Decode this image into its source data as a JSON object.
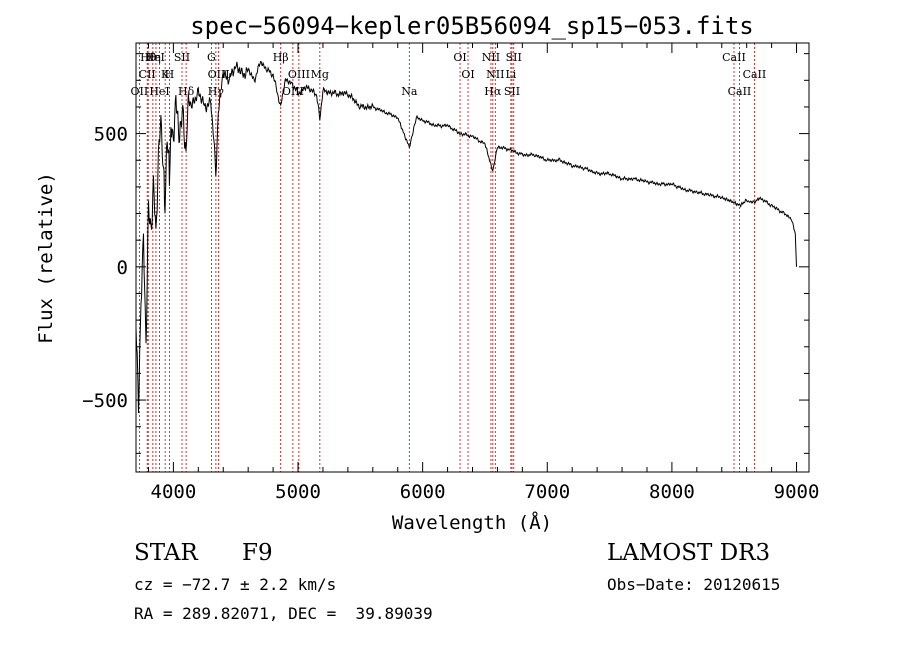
{
  "chart_data": {
    "type": "line",
    "title": "spec−56094−kepler05B56094_sp15−053.fits",
    "xlabel": "Wavelength (Å)",
    "ylabel": "Flux (relative)",
    "xlim": [
      3700,
      9100
    ],
    "ylim": [
      -770,
      840
    ],
    "xticks": [
      4000,
      5000,
      6000,
      7000,
      8000,
      9000
    ],
    "xtick_labels": [
      "4000",
      "5000",
      "6000",
      "7000",
      "8000",
      "9000"
    ],
    "yticks": [
      -500,
      0,
      500
    ],
    "ytick_labels": [
      "−500",
      "0",
      "500"
    ],
    "series": [
      {
        "name": "flux",
        "x": [
          3700,
          3720,
          3740,
          3760,
          3780,
          3800,
          3820,
          3840,
          3860,
          3880,
          3900,
          3920,
          3933,
          3945,
          3960,
          3968,
          3980,
          4000,
          4020,
          4050,
          4080,
          4101,
          4120,
          4150,
          4200,
          4250,
          4300,
          4330,
          4340,
          4360,
          4400,
          4450,
          4500,
          4550,
          4600,
          4650,
          4700,
          4750,
          4800,
          4861,
          4900,
          4950,
          5000,
          5050,
          5100,
          5150,
          5175,
          5200,
          5300,
          5400,
          5500,
          5600,
          5700,
          5800,
          5893,
          5950,
          6000,
          6100,
          6200,
          6300,
          6400,
          6500,
          6563,
          6600,
          6700,
          6800,
          6900,
          7000,
          7100,
          7200,
          7300,
          7400,
          7500,
          7600,
          7700,
          7800,
          7900,
          8000,
          8100,
          8200,
          8300,
          8400,
          8498,
          8542,
          8600,
          8662,
          8700,
          8800,
          8900,
          8960,
          8990,
          9000
        ],
        "y": [
          -200,
          -560,
          -100,
          100,
          -300,
          200,
          150,
          300,
          100,
          420,
          560,
          380,
          220,
          420,
          500,
          300,
          520,
          480,
          600,
          520,
          560,
          420,
          640,
          600,
          660,
          600,
          620,
          440,
          340,
          580,
          730,
          700,
          760,
          720,
          740,
          700,
          770,
          740,
          720,
          600,
          700,
          690,
          650,
          670,
          670,
          640,
          560,
          660,
          650,
          650,
          600,
          600,
          580,
          560,
          450,
          560,
          550,
          530,
          530,
          500,
          490,
          460,
          360,
          450,
          440,
          420,
          420,
          400,
          400,
          380,
          370,
          350,
          350,
          330,
          330,
          320,
          310,
          310,
          290,
          280,
          270,
          260,
          240,
          230,
          250,
          240,
          260,
          230,
          200,
          180,
          120,
          0
        ]
      }
    ],
    "lines": [
      {
        "label": "Hθ",
        "wl": 3798
      },
      {
        "label": "CII",
        "wl": 3790
      },
      {
        "label": "OII",
        "wl": 3727
      },
      {
        "label": "Hη",
        "wl": 3835
      },
      {
        "label": "K",
        "wl": 3934
      },
      {
        "label": "HeI",
        "wl": 3889
      },
      {
        "label": "FeI",
        "wl": 3860
      },
      {
        "label": "H",
        "wl": 3968
      },
      {
        "label": "Hδ",
        "wl": 4102
      },
      {
        "label": "SII",
        "wl": 4069
      },
      {
        "label": "OIII",
        "wl": 4363
      },
      {
        "label": "Hγ",
        "wl": 4341
      },
      {
        "label": "G",
        "wl": 4305
      },
      {
        "label": "OIII",
        "wl": 5007
      },
      {
        "label": "OIII",
        "wl": 4959
      },
      {
        "label": "Hβ",
        "wl": 4861
      },
      {
        "label": "Mg",
        "wl": 5175
      },
      {
        "label": "Na",
        "wl": 5893
      },
      {
        "label": "OI",
        "wl": 6300
      },
      {
        "label": "OI",
        "wl": 6364
      },
      {
        "label": "Hα",
        "wl": 6563
      },
      {
        "label": "NII",
        "wl": 6548
      },
      {
        "label": "NII",
        "wl": 6583
      },
      {
        "label": "SII",
        "wl": 6717
      },
      {
        "label": "SII",
        "wl": 6731
      },
      {
        "label": "Li",
        "wl": 6708
      },
      {
        "label": "CaII",
        "wl": 8542
      },
      {
        "label": "CaII",
        "wl": 8498
      },
      {
        "label": "CaII",
        "wl": 8662
      }
    ]
  },
  "info": {
    "object_class": "STAR",
    "subclass": "F9",
    "survey": "LAMOST DR3",
    "cz": "cz = −72.7 ± 2.2 km/s",
    "obs_date": "Obs−Date: 20120615",
    "coords": "RA = 289.82071, DEC =  39.89039"
  }
}
